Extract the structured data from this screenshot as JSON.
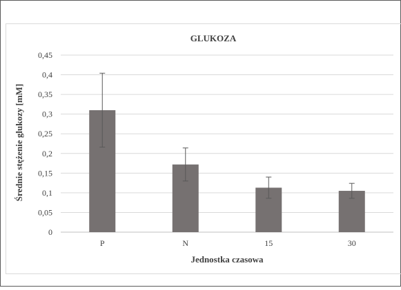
{
  "chart_data": {
    "type": "bar",
    "title": "GLUKOZA",
    "xlabel": "Jednostka czasowa",
    "ylabel": "Średnie stężenie glukozy [mM]",
    "categories": [
      "P",
      "N",
      "15",
      "30"
    ],
    "values": [
      0.31,
      0.172,
      0.113,
      0.105
    ],
    "error_bars": [
      0.094,
      0.042,
      0.027,
      0.019
    ],
    "ylim": [
      0,
      0.45
    ],
    "yticks": [
      "0",
      "0,05",
      "0,1",
      "0,15",
      "0,2",
      "0,25",
      "0,3",
      "0,35",
      "0,4",
      "0,45"
    ],
    "grid": true,
    "legend": "none",
    "bar_color": "#767171"
  }
}
